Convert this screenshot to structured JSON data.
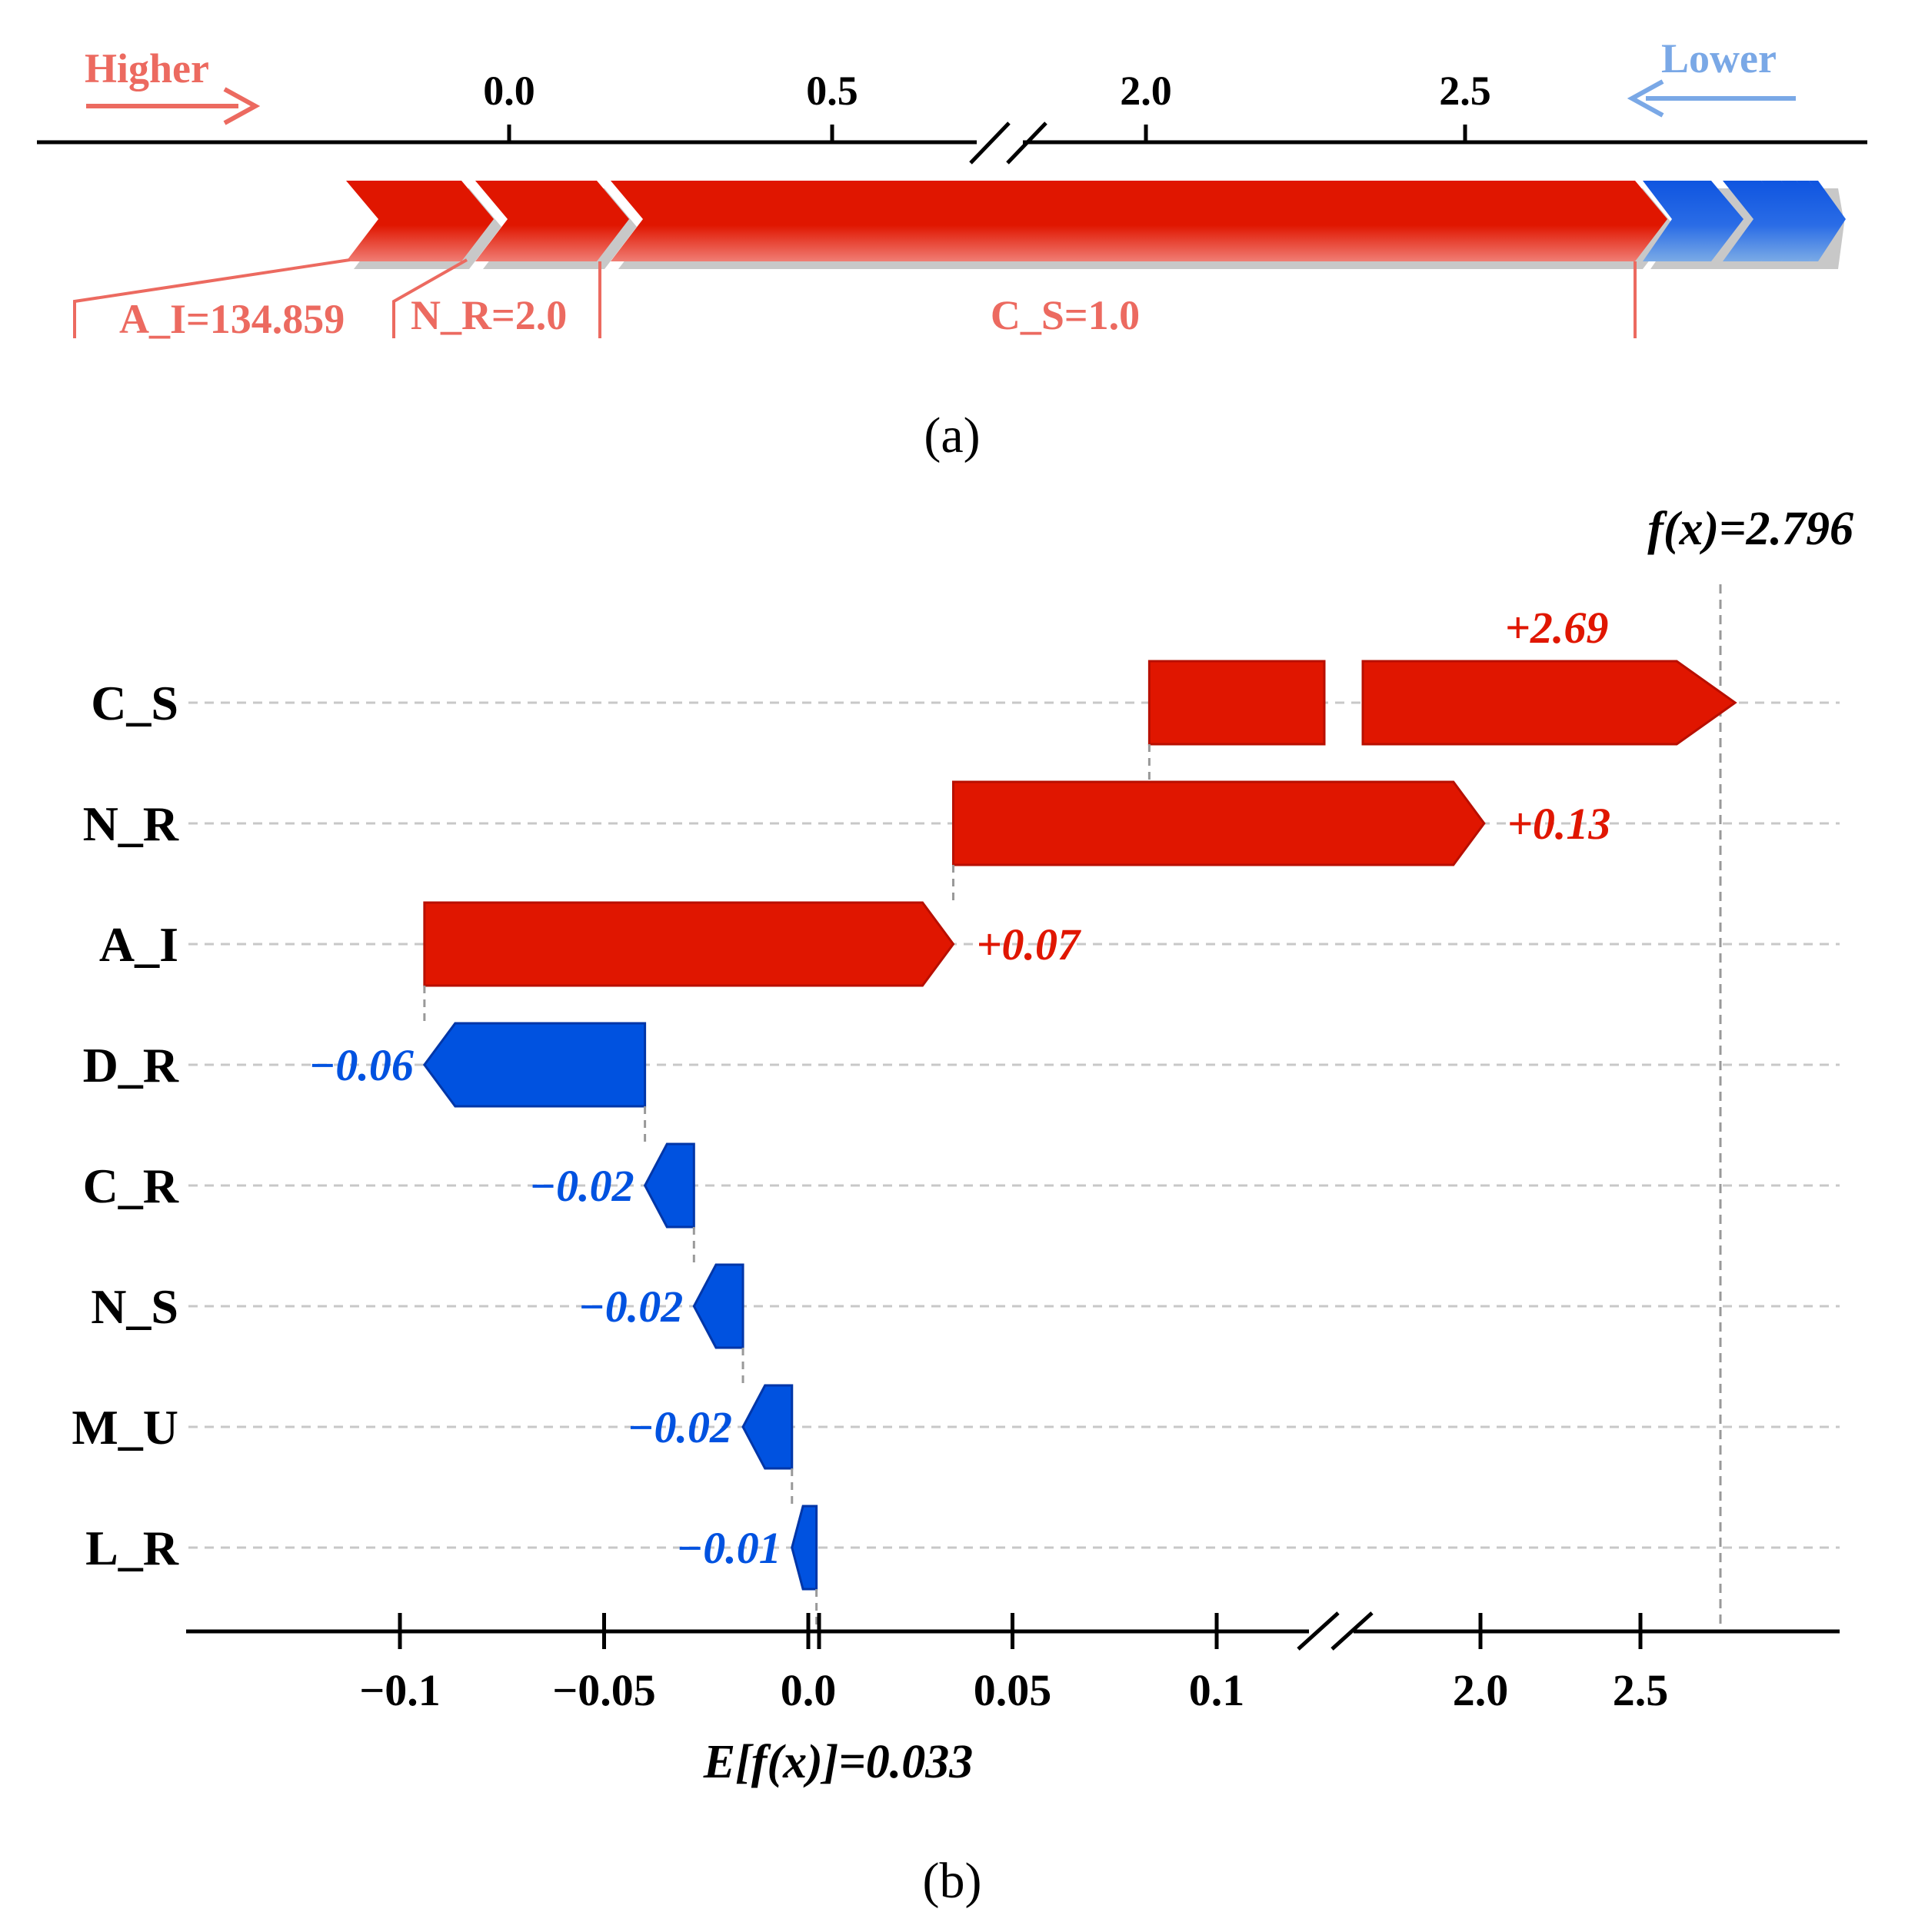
{
  "colors": {
    "positive": "#e01600",
    "positive_light": "#f0746a",
    "negative": "#0052e0",
    "negative_light": "#7aaae6",
    "axis": "#000000",
    "grid": "#c8c8c8",
    "guide": "#999999",
    "text": "#000000"
  },
  "chart_data": [
    {
      "panel_label": "(a)",
      "type": "force",
      "higher_label": "Higher",
      "lower_label": "Lower",
      "axis_ticks": [
        "0.0",
        "0.5",
        "2.0",
        "2.5"
      ],
      "features": [
        {
          "label": "A_I=134.859",
          "effect": "positive"
        },
        {
          "label": "N_R=2.0",
          "effect": "positive"
        },
        {
          "label": "C_S=1.0",
          "effect": "positive"
        }
      ]
    },
    {
      "panel_label": "(b)",
      "type": "waterfall",
      "output_label": "f(x)=2.796",
      "base_label": "E[f(x)]=0.033",
      "features": [
        {
          "name": "C_S",
          "value": 2.69,
          "label": "+2.69"
        },
        {
          "name": "N_R",
          "value": 0.13,
          "label": "+0.13"
        },
        {
          "name": "A_I",
          "value": 0.07,
          "label": "+0.07"
        },
        {
          "name": "D_R",
          "value": -0.06,
          "label": "−0.06"
        },
        {
          "name": "C_R",
          "value": -0.02,
          "label": "−0.02"
        },
        {
          "name": "N_S",
          "value": -0.02,
          "label": "−0.02"
        },
        {
          "name": "M_U",
          "value": -0.02,
          "label": "−0.02"
        },
        {
          "name": "L_R",
          "value": -0.01,
          "label": "−0.01"
        }
      ],
      "x_ticks": [
        "−0.1",
        "−0.05",
        "0.0",
        "0.05",
        "0.1",
        "2.0",
        "2.5"
      ],
      "axis_break": true
    }
  ]
}
